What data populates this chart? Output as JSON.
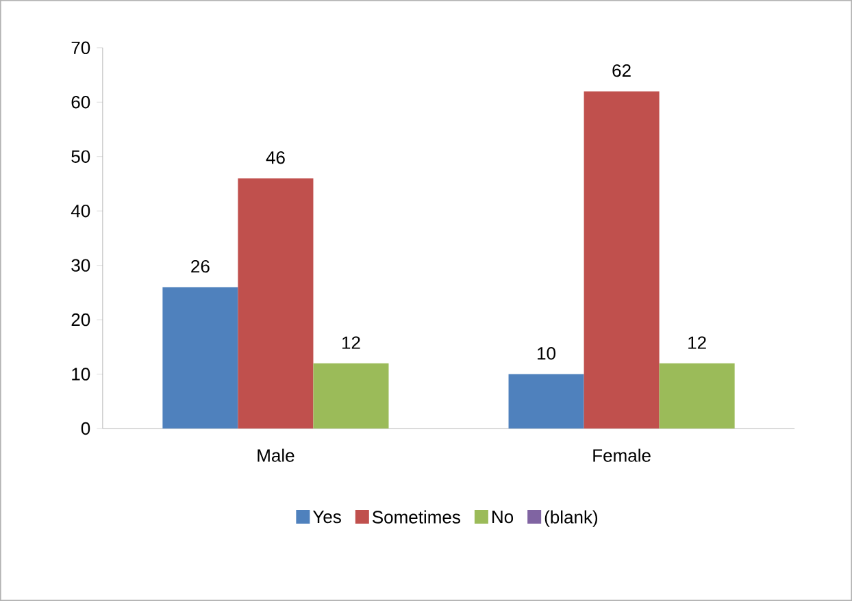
{
  "chart_data": {
    "type": "bar",
    "categories": [
      "Male",
      "Female"
    ],
    "series": [
      {
        "name": "Yes",
        "color": "#4f81bd",
        "values": [
          26,
          10
        ]
      },
      {
        "name": "Sometimes",
        "color": "#c0504d",
        "values": [
          46,
          62
        ]
      },
      {
        "name": "No",
        "color": "#9bbb59",
        "values": [
          12,
          12
        ]
      },
      {
        "name": "(blank)",
        "color": "#8064a2",
        "values": [
          null,
          null
        ]
      }
    ],
    "ylim": [
      0,
      70
    ],
    "yticks": [
      0,
      10,
      20,
      30,
      40,
      50,
      60,
      70
    ],
    "data_labels": true,
    "legend": "bottom",
    "grid": false
  }
}
